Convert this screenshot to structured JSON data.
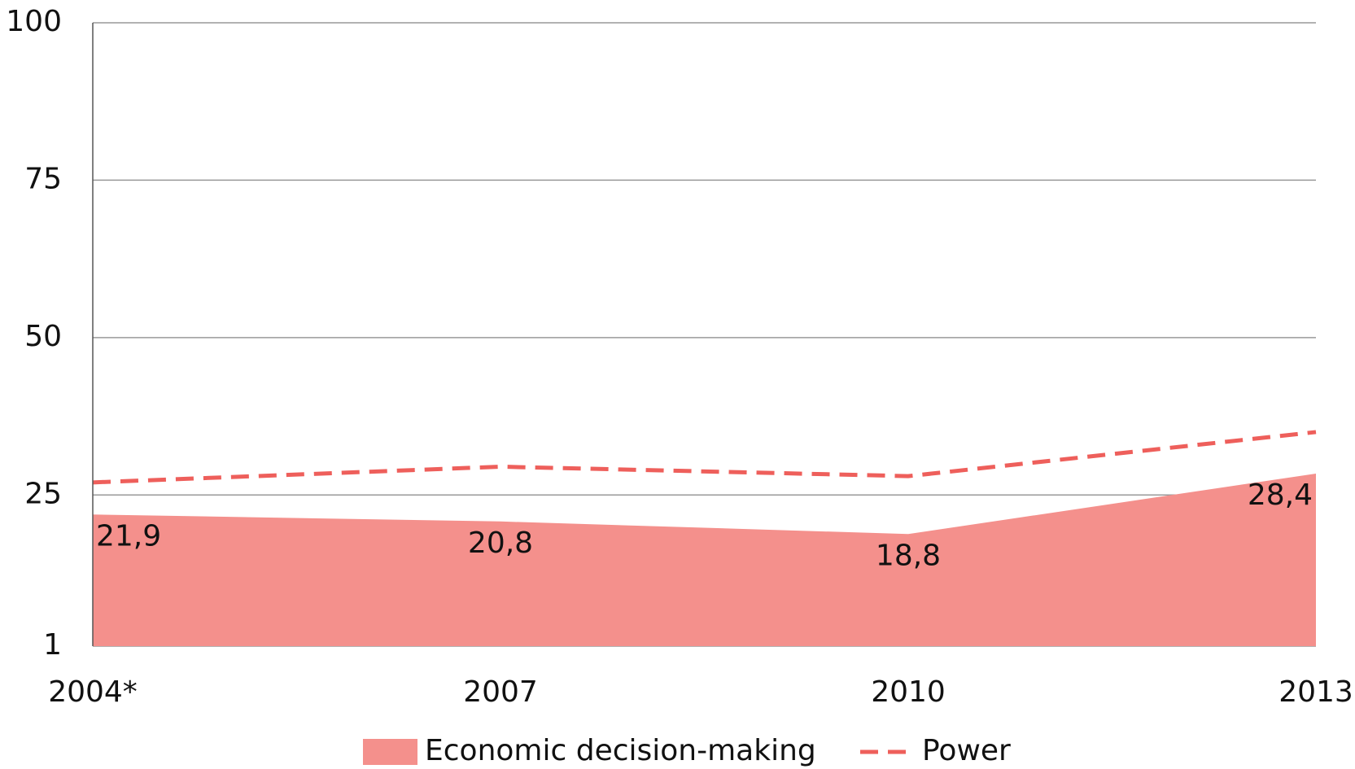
{
  "chart_data": {
    "type": "area_line",
    "categories": [
      "2004*",
      "2007",
      "2010",
      "2013"
    ],
    "series": [
      {
        "name": "Economic decision-making",
        "color": "#f4908c",
        "kind": "area",
        "values": [
          21.9,
          20.8,
          18.8,
          28.4
        ],
        "value_labels": [
          "21,9",
          "20,8",
          "18,8",
          "28,4"
        ]
      },
      {
        "name": "Power",
        "color": "#ee5f5b",
        "kind": "dashed-line",
        "values": [
          27,
          29.5,
          28,
          35
        ]
      }
    ],
    "ylim": [
      1,
      100
    ],
    "yticks": [
      1,
      25,
      50,
      75,
      100
    ],
    "grid": true,
    "legend": "bottom"
  }
}
